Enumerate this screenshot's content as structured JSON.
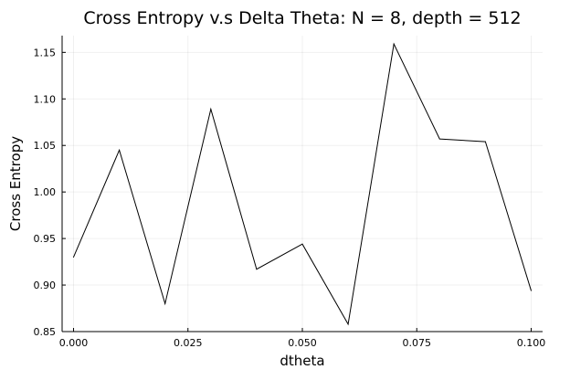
{
  "chart_data": {
    "type": "line",
    "title": "Cross Entropy v.s Delta Theta: N = 8, depth = 512",
    "xlabel": "dtheta",
    "ylabel": "Cross Entropy",
    "xlim": [
      -0.0025,
      0.1025
    ],
    "ylim": [
      0.85,
      1.168
    ],
    "xticks": [
      0.0,
      0.025,
      0.05,
      0.075,
      0.1
    ],
    "xtick_labels": [
      "0.000",
      "0.025",
      "0.050",
      "0.075",
      "0.100"
    ],
    "yticks": [
      0.85,
      0.9,
      0.95,
      1.0,
      1.05,
      1.1,
      1.15
    ],
    "ytick_labels": [
      "0.85",
      "0.90",
      "0.95",
      "1.00",
      "1.05",
      "1.10",
      "1.15"
    ],
    "grid": true,
    "legend": "none",
    "series": [
      {
        "color": "#000000",
        "x": [
          0.0,
          0.01,
          0.02,
          0.03,
          0.04,
          0.05,
          0.06,
          0.07,
          0.08,
          0.09,
          0.1
        ],
        "y": [
          0.93,
          1.045,
          0.88,
          1.089,
          0.917,
          0.944,
          0.858,
          1.159,
          1.057,
          1.054,
          0.894
        ]
      }
    ]
  }
}
